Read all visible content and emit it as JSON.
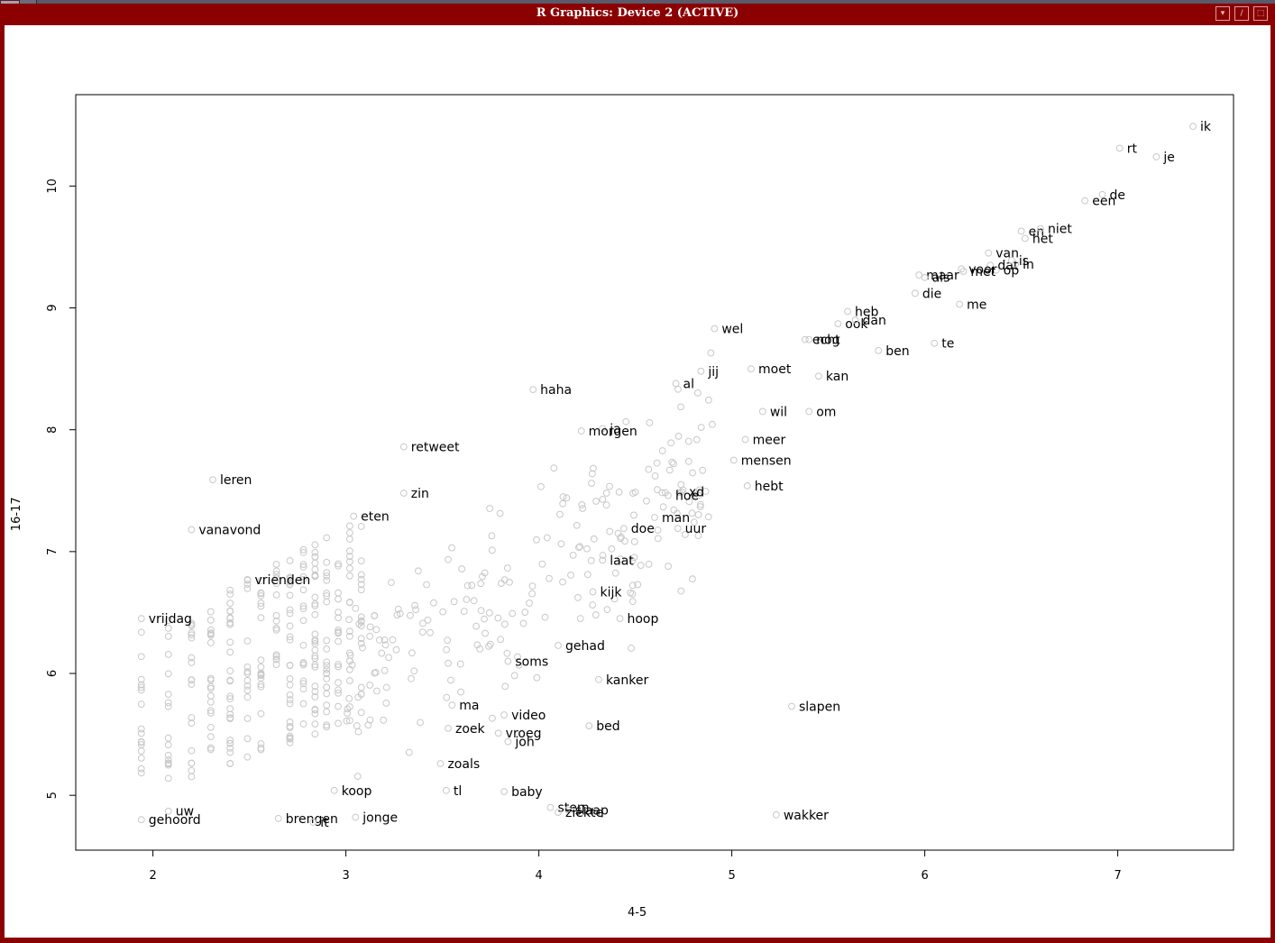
{
  "window": {
    "title": "R Graphics: Device 2 (ACTIVE)",
    "buttons": [
      "▾",
      "/",
      "⬚"
    ]
  },
  "chart_data": {
    "type": "scatter",
    "xlabel": "4-5",
    "ylabel": "16-17",
    "xlim": [
      1.6,
      7.6
    ],
    "ylim": [
      4.55,
      10.75
    ],
    "xticks": [
      2,
      3,
      4,
      5,
      6,
      7
    ],
    "yticks": [
      5,
      6,
      7,
      8,
      9,
      10
    ],
    "point_color": "#c8c8c8",
    "label_color": "#000000",
    "grid": false,
    "labeled_points": [
      {
        "word": "ik",
        "x": 7.39,
        "y": 10.49
      },
      {
        "word": "rt",
        "x": 7.01,
        "y": 10.31
      },
      {
        "word": "je",
        "x": 7.2,
        "y": 10.24
      },
      {
        "word": "de",
        "x": 6.92,
        "y": 9.93
      },
      {
        "word": "en",
        "x": 6.5,
        "y": 9.63
      },
      {
        "word": "het",
        "x": 6.52,
        "y": 9.57
      },
      {
        "word": "een",
        "x": 6.83,
        "y": 9.88
      },
      {
        "word": "niet",
        "x": 6.6,
        "y": 9.65
      },
      {
        "word": "van",
        "x": 6.33,
        "y": 9.45
      },
      {
        "word": "dat",
        "x": 6.34,
        "y": 9.35
      },
      {
        "word": "is",
        "x": 6.45,
        "y": 9.39
      },
      {
        "word": "op",
        "x": 6.37,
        "y": 9.31
      },
      {
        "word": "in",
        "x": 6.47,
        "y": 9.36
      },
      {
        "word": "maar",
        "x": 5.97,
        "y": 9.27
      },
      {
        "word": "voor",
        "x": 6.19,
        "y": 9.32
      },
      {
        "word": "als",
        "x": 6.0,
        "y": 9.25
      },
      {
        "word": "met",
        "x": 6.2,
        "y": 9.3
      },
      {
        "word": "die",
        "x": 5.95,
        "y": 9.12
      },
      {
        "word": "me",
        "x": 6.18,
        "y": 9.03
      },
      {
        "word": "heb",
        "x": 5.6,
        "y": 8.97
      },
      {
        "word": "ook",
        "x": 5.55,
        "y": 8.87
      },
      {
        "word": "dan",
        "x": 5.64,
        "y": 8.9
      },
      {
        "word": "wel",
        "x": 4.91,
        "y": 8.83
      },
      {
        "word": "echt",
        "x": 5.38,
        "y": 8.74
      },
      {
        "word": "nog",
        "x": 5.4,
        "y": 8.74
      },
      {
        "word": "te",
        "x": 6.05,
        "y": 8.71
      },
      {
        "word": "moet",
        "x": 5.1,
        "y": 8.5
      },
      {
        "word": "jij",
        "x": 4.84,
        "y": 8.48
      },
      {
        "word": "ben",
        "x": 5.76,
        "y": 8.65
      },
      {
        "word": "al",
        "x": 4.71,
        "y": 8.38
      },
      {
        "word": "kan",
        "x": 5.45,
        "y": 8.44
      },
      {
        "word": "haha",
        "x": 3.97,
        "y": 8.33
      },
      {
        "word": "om",
        "x": 5.4,
        "y": 8.15
      },
      {
        "word": "ja",
        "x": 4.33,
        "y": 8.01
      },
      {
        "word": "wil",
        "x": 5.16,
        "y": 8.15
      },
      {
        "word": "morgen",
        "x": 4.22,
        "y": 7.99
      },
      {
        "word": "meer",
        "x": 5.07,
        "y": 7.92
      },
      {
        "word": "retweet",
        "x": 3.3,
        "y": 7.86
      },
      {
        "word": "mensen",
        "x": 5.01,
        "y": 7.75
      },
      {
        "word": "leren",
        "x": 2.31,
        "y": 7.59
      },
      {
        "word": "zin",
        "x": 3.3,
        "y": 7.48
      },
      {
        "word": "hebt",
        "x": 5.08,
        "y": 7.54
      },
      {
        "word": "xd",
        "x": 4.74,
        "y": 7.49
      },
      {
        "word": "hoe",
        "x": 4.67,
        "y": 7.46
      },
      {
        "word": "vanavond",
        "x": 2.2,
        "y": 7.18
      },
      {
        "word": "eten",
        "x": 3.04,
        "y": 7.29
      },
      {
        "word": "man",
        "x": 4.6,
        "y": 7.28
      },
      {
        "word": "doe",
        "x": 4.44,
        "y": 7.19
      },
      {
        "word": "uur",
        "x": 4.72,
        "y": 7.19
      },
      {
        "word": "laat",
        "x": 4.33,
        "y": 6.93
      },
      {
        "word": "vrienden",
        "x": 2.49,
        "y": 6.77
      },
      {
        "word": "kijk",
        "x": 4.28,
        "y": 6.67
      },
      {
        "word": "hoop",
        "x": 4.42,
        "y": 6.45
      },
      {
        "word": "vrijdag",
        "x": 1.94,
        "y": 6.45
      },
      {
        "word": "gehad",
        "x": 4.1,
        "y": 6.23
      },
      {
        "word": "soms",
        "x": 3.84,
        "y": 6.1
      },
      {
        "word": "kanker",
        "x": 4.31,
        "y": 5.95
      },
      {
        "word": "slapen",
        "x": 5.31,
        "y": 5.73
      },
      {
        "word": "ma",
        "x": 3.55,
        "y": 5.74
      },
      {
        "word": "video",
        "x": 3.82,
        "y": 5.66
      },
      {
        "word": "zoek",
        "x": 3.53,
        "y": 5.55
      },
      {
        "word": "vroeg",
        "x": 3.79,
        "y": 5.51
      },
      {
        "word": "bed",
        "x": 4.26,
        "y": 5.57
      },
      {
        "word": "joh",
        "x": 3.84,
        "y": 5.44
      },
      {
        "word": "zoals",
        "x": 3.49,
        "y": 5.26
      },
      {
        "word": "baby",
        "x": 3.82,
        "y": 5.03
      },
      {
        "word": "koop",
        "x": 2.94,
        "y": 5.04
      },
      {
        "word": "tl",
        "x": 3.52,
        "y": 5.04
      },
      {
        "word": "stem",
        "x": 4.06,
        "y": 4.9
      },
      {
        "word": "slaap",
        "x": 4.15,
        "y": 4.88
      },
      {
        "word": "ziekte",
        "x": 4.1,
        "y": 4.86
      },
      {
        "word": "wakker",
        "x": 5.23,
        "y": 4.84
      },
      {
        "word": "jonge",
        "x": 3.05,
        "y": 4.82
      },
      {
        "word": "gehoord",
        "x": 1.94,
        "y": 4.8
      },
      {
        "word": "uw",
        "x": 2.08,
        "y": 4.87
      },
      {
        "word": "brengen",
        "x": 2.65,
        "y": 4.81
      },
      {
        "word": "it",
        "x": 2.83,
        "y": 4.78
      }
    ],
    "unlabeled_cloud_note": ""
  }
}
